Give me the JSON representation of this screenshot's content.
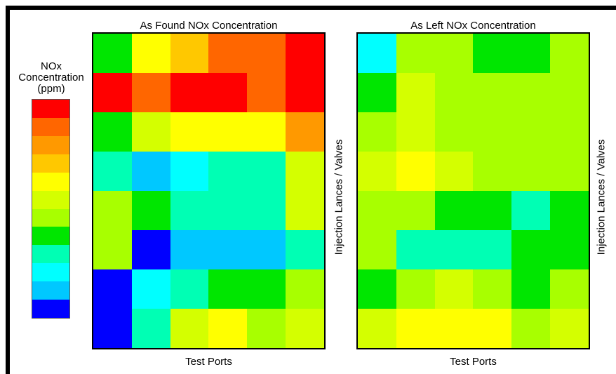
{
  "legend": {
    "title_lines": [
      "NOx",
      "Concentration",
      "(ppm)"
    ],
    "colors": [
      "#ff0000",
      "#ff6600",
      "#ff9900",
      "#ffc800",
      "#ffff00",
      "#d4ff00",
      "#a8ff00",
      "#00e600",
      "#00ffb4",
      "#00ffff",
      "#00c8ff",
      "#0000ff"
    ]
  },
  "chart_data": [
    {
      "type": "heatmap",
      "title": "As Found NOx Concentration",
      "xlabel": "Test Ports",
      "ylabel": "Injection Lances / Valves",
      "columns": 6,
      "rows": 8,
      "color_levels": [
        [
          7,
          4,
          3,
          1,
          1,
          0
        ],
        [
          0,
          1,
          0,
          0,
          1,
          0
        ],
        [
          7,
          5,
          4,
          4,
          4,
          2
        ],
        [
          8,
          10,
          9,
          8,
          8,
          5
        ],
        [
          6,
          7,
          8,
          8,
          8,
          5
        ],
        [
          6,
          11,
          10,
          10,
          10,
          8
        ],
        [
          11,
          9,
          8,
          7,
          7,
          6
        ],
        [
          11,
          8,
          5,
          4,
          6,
          5
        ]
      ]
    },
    {
      "type": "heatmap",
      "title": "As Left NOx Concentration",
      "xlabel": "Test Ports",
      "ylabel": "Injection Lances / Valves",
      "columns": 6,
      "rows": 8,
      "color_levels": [
        [
          9,
          6,
          6,
          7,
          7,
          6
        ],
        [
          7,
          5,
          6,
          6,
          6,
          6
        ],
        [
          6,
          5,
          6,
          6,
          6,
          6
        ],
        [
          5,
          4,
          5,
          6,
          6,
          6
        ],
        [
          6,
          6,
          7,
          7,
          8,
          7
        ],
        [
          6,
          8,
          8,
          8,
          7,
          7
        ],
        [
          7,
          6,
          5,
          6,
          7,
          6
        ],
        [
          5,
          4,
          4,
          4,
          6,
          5
        ]
      ]
    }
  ]
}
